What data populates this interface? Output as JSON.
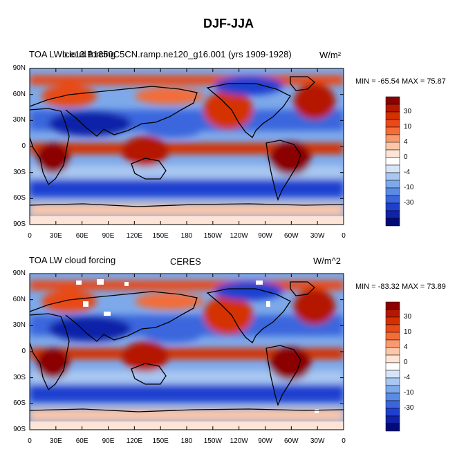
{
  "title": "DJF-JJA",
  "panels": [
    {
      "left_label": "TOA LW cloud forcing",
      "center_label": "b.e13.B1850C5CN.ramp.ne120_g16.001 (yrs 1909-1928)",
      "units": "W/m²",
      "minmax": "MIN = -65.54 MAX =  75.87"
    },
    {
      "left_label": "TOA LW cloud forcing",
      "center_label": "CERES",
      "units": "W/m^2",
      "minmax": "MIN = -83.32 MAX = 73.89"
    }
  ],
  "lat_ticks": [
    "90N",
    "60N",
    "30N",
    "0",
    "30S",
    "60S",
    "90S"
  ],
  "lon_ticks": [
    "0",
    "30E",
    "60E",
    "90E",
    "120E",
    "150E",
    "180",
    "150W",
    "120W",
    "90W",
    "60W",
    "30W",
    "0"
  ],
  "colorbar": {
    "labels": [
      "30",
      "10",
      "4",
      "0",
      "-4",
      "-10",
      "-30"
    ],
    "colors": [
      "#8b0000",
      "#b51800",
      "#d43000",
      "#e84a18",
      "#f46c38",
      "#f99a6e",
      "#fcc6a8",
      "#fde4d6",
      "#ffffff",
      "#d6e4f8",
      "#a9c7f1",
      "#7da9ea",
      "#5a8ae4",
      "#3a66dd",
      "#1f3fcf",
      "#0f22a8",
      "#000b78"
    ]
  }
}
